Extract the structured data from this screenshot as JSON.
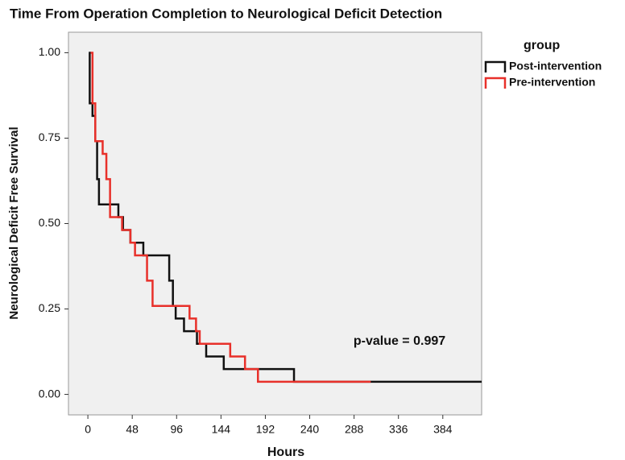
{
  "chart_data": {
    "type": "line",
    "step": true,
    "title": "Time From Operation Completion to Neurological Deficit Detection",
    "x_label": "Hours",
    "y_label": "Neurological Deficit Free Survival",
    "legend_title": "group",
    "annotation": "p-value = 0.997",
    "xlim": [
      -21,
      426
    ],
    "ylim": [
      -0.06,
      1.06
    ],
    "xticks": [
      0,
      48,
      96,
      144,
      192,
      240,
      288,
      336,
      384
    ],
    "yticks": [
      {
        "value": 0,
        "label": "0.00"
      },
      {
        "value": 0.25,
        "label": "0.25"
      },
      {
        "value": 0.5,
        "label": "0.50"
      },
      {
        "value": 0.75,
        "label": "0.75"
      },
      {
        "value": 1,
        "label": "1.00"
      }
    ],
    "series": [
      {
        "name": "Post-intervention",
        "color": "#111111",
        "x": [
          1,
          2,
          5,
          8,
          10,
          12,
          33,
          38,
          46,
          60,
          88,
          92,
          95,
          104,
          118,
          128,
          147,
          223,
          426
        ],
        "values": [
          1,
          0.852,
          0.815,
          0.741,
          0.63,
          0.556,
          0.519,
          0.481,
          0.444,
          0.407,
          0.333,
          0.259,
          0.222,
          0.185,
          0.148,
          0.111,
          0.074,
          0.037,
          0.037
        ]
      },
      {
        "name": "Pre-intervention",
        "color": "#e8302a",
        "x": [
          3,
          5,
          8,
          16,
          20,
          24,
          37,
          46,
          51,
          64,
          70,
          110,
          117,
          121,
          154,
          170,
          184,
          306
        ],
        "values": [
          1,
          0.852,
          0.741,
          0.704,
          0.63,
          0.519,
          0.481,
          0.444,
          0.407,
          0.333,
          0.259,
          0.222,
          0.185,
          0.148,
          0.111,
          0.074,
          0.037,
          0.037
        ]
      }
    ]
  }
}
